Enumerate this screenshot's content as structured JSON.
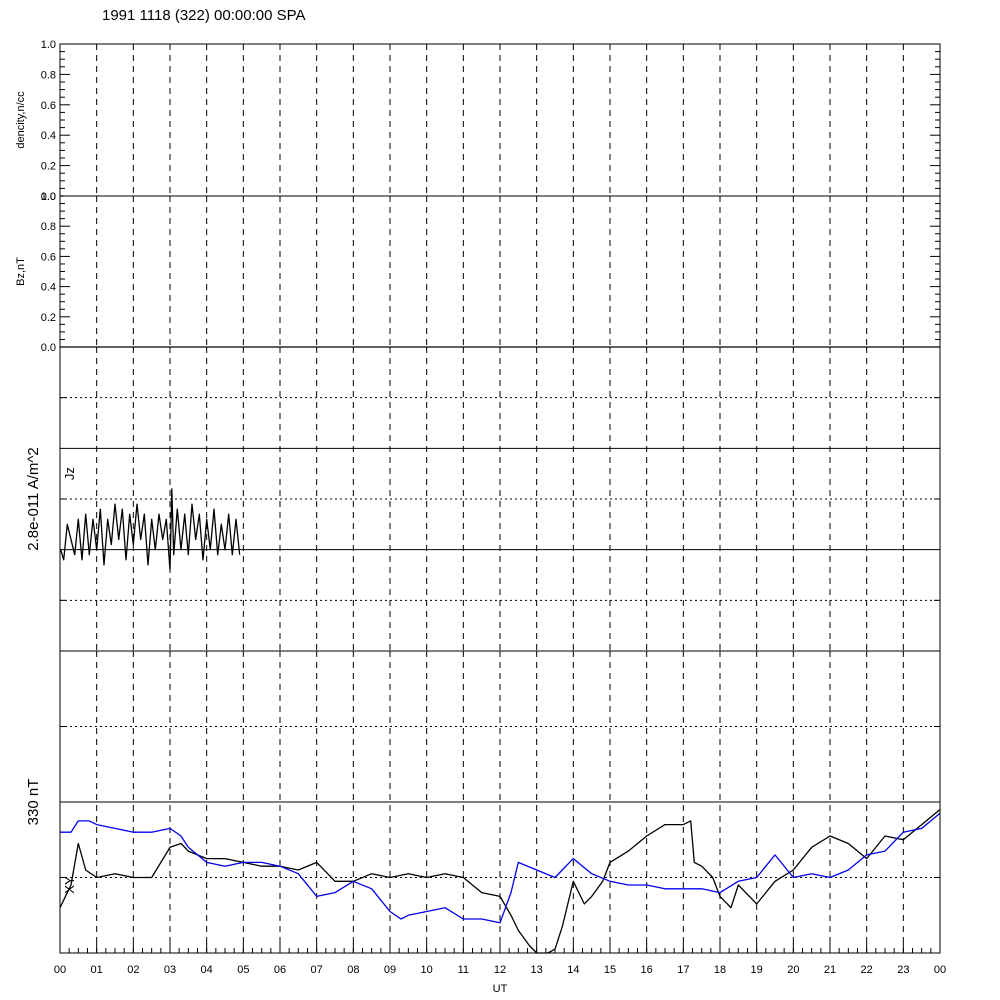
{
  "title": "1991 1118 (322) 00:00:00 SPA",
  "colors": {
    "axes": "#000000",
    "series_black": "#000000",
    "series_blue": "#0000ee"
  },
  "chart_data": [
    {
      "type": "line",
      "panel": "density",
      "ylabel": "dencity,n/cc",
      "ylim": [
        0,
        1
      ],
      "yticks": [
        "0.0",
        "0.2",
        "0.4",
        "0.6",
        "0.8",
        "1.0"
      ],
      "series": [
        {
          "color": "#000000",
          "x": [
            0,
            0.1
          ],
          "y": [
            0.0,
            0.0
          ]
        }
      ]
    },
    {
      "type": "line",
      "panel": "bz",
      "ylabel": "Bz,nT",
      "ylim": [
        0,
        1
      ],
      "yticks": [
        "0.0",
        "0.2",
        "0.4",
        "0.6",
        "0.8",
        "1.0"
      ],
      "series": [
        {
          "color": "#000000",
          "x": [
            0,
            24
          ],
          "y": [
            0.0,
            0.0
          ]
        }
      ]
    },
    {
      "type": "line",
      "panel": "current",
      "ylabel": "2.8e-011 A/m^2",
      "trace_label": "Jz",
      "ylim": [
        0,
        6
      ],
      "sections": [
        2,
        4
      ],
      "dotted_levels": [
        1,
        3,
        5
      ],
      "series": [
        {
          "name": "Jz",
          "color": "#000000",
          "x": [
            0.02,
            0.1,
            0.2,
            0.3,
            0.4,
            0.5,
            0.6,
            0.7,
            0.8,
            0.9,
            1.0,
            1.1,
            1.2,
            1.3,
            1.4,
            1.5,
            1.6,
            1.7,
            1.8,
            1.9,
            2.0,
            2.1,
            2.2,
            2.3,
            2.4,
            2.5,
            2.6,
            2.7,
            2.8,
            2.9,
            3.0,
            3.05,
            3.1,
            3.2,
            3.3,
            3.4,
            3.5,
            3.6,
            3.7,
            3.8,
            3.9,
            4.0,
            4.1,
            4.2,
            4.3,
            4.4,
            4.5,
            4.6,
            4.7,
            4.8,
            4.9
          ],
          "y": [
            2.0,
            1.8,
            2.5,
            2.2,
            1.9,
            2.6,
            1.8,
            2.7,
            1.9,
            2.6,
            2.0,
            2.8,
            1.7,
            2.6,
            2.1,
            2.9,
            2.2,
            2.8,
            1.8,
            2.7,
            2.1,
            2.9,
            2.2,
            2.7,
            1.7,
            2.6,
            2.0,
            2.7,
            2.2,
            2.6,
            1.6,
            3.2,
            1.9,
            2.8,
            2.0,
            2.7,
            1.9,
            2.9,
            2.2,
            2.7,
            1.8,
            2.6,
            2.0,
            2.8,
            1.9,
            2.5,
            2.0,
            2.7,
            1.9,
            2.6,
            1.9
          ]
        }
      ]
    },
    {
      "type": "line",
      "panel": "magnetic",
      "ylabel": "330 nT",
      "trace_label": "XY",
      "ylim": [
        0,
        4
      ],
      "sections": [
        2
      ],
      "dotted_levels": [
        1,
        3
      ],
      "series": [
        {
          "name": "X",
          "color": "#000000",
          "x": [
            0,
            0.3,
            0.5,
            0.7,
            1.0,
            1.5,
            2.0,
            2.5,
            3.0,
            3.3,
            3.5,
            4.0,
            4.5,
            5.0,
            5.5,
            6.0,
            6.5,
            7.0,
            7.3,
            7.5,
            8.0,
            8.5,
            9.0,
            9.5,
            10.0,
            10.5,
            11.0,
            11.5,
            12.0,
            12.3,
            12.5,
            12.8,
            13.0,
            13.3,
            13.5,
            13.7,
            14.0,
            14.3,
            14.5,
            14.8,
            15.0,
            15.5,
            16.0,
            16.5,
            17.0,
            17.2,
            17.3,
            17.5,
            17.8,
            18.0,
            18.3,
            18.5,
            19.0,
            19.5,
            20.0,
            20.5,
            21.0,
            21.5,
            22.0,
            22.5,
            23.0,
            23.5,
            24.0
          ],
          "y": [
            0.6,
            0.9,
            1.45,
            1.1,
            1.0,
            1.05,
            1.0,
            1.0,
            1.4,
            1.45,
            1.35,
            1.25,
            1.25,
            1.2,
            1.15,
            1.15,
            1.1,
            1.2,
            1.05,
            0.95,
            0.95,
            1.05,
            1.0,
            1.05,
            1.0,
            1.05,
            1.0,
            0.8,
            0.75,
            0.5,
            0.3,
            0.1,
            -0.1,
            -0.2,
            0.05,
            0.35,
            0.95,
            0.65,
            0.75,
            0.95,
            1.2,
            1.35,
            1.55,
            1.7,
            1.7,
            1.75,
            1.2,
            1.15,
            1.0,
            0.75,
            0.6,
            0.9,
            0.65,
            0.95,
            1.1,
            1.4,
            1.55,
            1.45,
            1.25,
            1.55,
            1.5,
            1.7,
            1.9
          ]
        },
        {
          "name": "Y",
          "color": "#0000ee",
          "x": [
            0,
            0.3,
            0.5,
            0.8,
            1.0,
            1.5,
            2.0,
            2.5,
            3.0,
            3.3,
            3.5,
            4.0,
            4.5,
            5.0,
            5.5,
            6.0,
            6.5,
            7.0,
            7.5,
            8.0,
            8.5,
            9.0,
            9.3,
            9.5,
            10.0,
            10.5,
            11.0,
            11.5,
            12.0,
            12.3,
            12.5,
            13.0,
            13.5,
            14.0,
            14.5,
            15.0,
            15.5,
            16.0,
            16.5,
            17.0,
            17.5,
            18.0,
            18.5,
            19.0,
            19.5,
            20.0,
            20.5,
            21.0,
            21.5,
            22.0,
            22.5,
            23.0,
            23.5,
            24.0
          ],
          "y": [
            1.6,
            1.6,
            1.75,
            1.75,
            1.7,
            1.65,
            1.6,
            1.6,
            1.65,
            1.55,
            1.4,
            1.2,
            1.15,
            1.2,
            1.2,
            1.15,
            1.05,
            0.75,
            0.8,
            0.95,
            0.85,
            0.55,
            0.45,
            0.5,
            0.55,
            0.6,
            0.45,
            0.45,
            0.4,
            0.8,
            1.2,
            1.1,
            1.0,
            1.25,
            1.05,
            0.95,
            0.9,
            0.9,
            0.85,
            0.85,
            0.85,
            0.8,
            0.95,
            1.0,
            1.3,
            1.0,
            1.05,
            1.0,
            1.1,
            1.3,
            1.35,
            1.6,
            1.65,
            1.85
          ]
        }
      ]
    }
  ],
  "x_axis": {
    "label": "UT",
    "range": [
      0,
      24
    ],
    "ticks": [
      "00",
      "01",
      "02",
      "03",
      "04",
      "05",
      "06",
      "07",
      "08",
      "09",
      "10",
      "11",
      "12",
      "13",
      "14",
      "15",
      "16",
      "17",
      "18",
      "19",
      "20",
      "21",
      "22",
      "23",
      "00"
    ]
  }
}
